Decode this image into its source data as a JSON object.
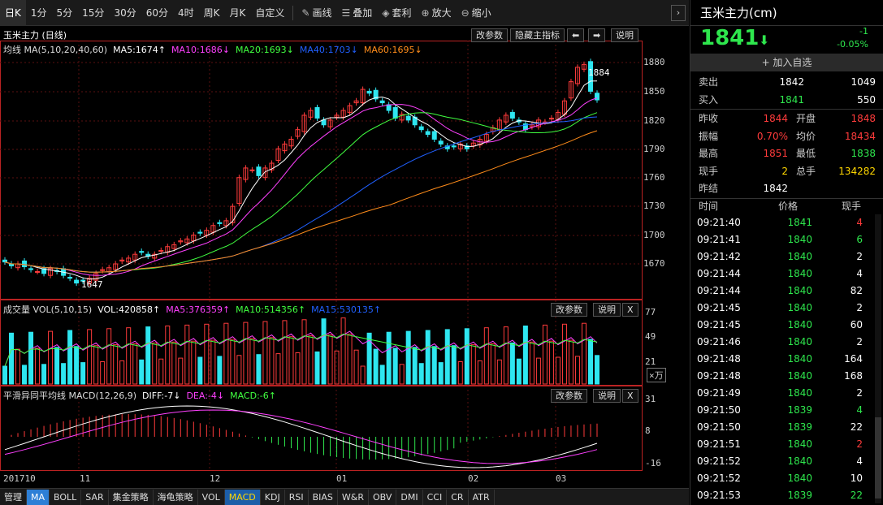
{
  "toolbar": {
    "items": [
      "日K",
      "1分",
      "5分",
      "15分",
      "30分",
      "60分",
      "4时",
      "周K",
      "月K",
      "自定义"
    ],
    "tools": [
      {
        "icon": "pencil-icon",
        "glyph": "✎",
        "label": "画线"
      },
      {
        "icon": "layers-icon",
        "glyph": "☰",
        "label": "叠加"
      },
      {
        "icon": "arbitrage-icon",
        "glyph": "◈",
        "label": "套利"
      },
      {
        "icon": "zoom-in-icon",
        "glyph": "⊕",
        "label": "放大"
      },
      {
        "icon": "zoom-out-icon",
        "glyph": "⊖",
        "label": "缩小"
      }
    ],
    "right_glyph": "›"
  },
  "main_panel": {
    "title": "玉米主力 (日线)",
    "buttons": {
      "params": "改参数",
      "hide": "隐藏主指标",
      "left": "⬅",
      "right": "➡",
      "help": "说明"
    },
    "ma_line": {
      "label": "均线 MA(5,10,20,40,60)",
      "ma5": "MA5:1674↑",
      "ma10": "MA10:1686↓",
      "ma20": "MA20:1693↓",
      "ma40": "MA40:1703↓",
      "ma60": "MA60:1695↓"
    },
    "y_ticks": [
      "1880",
      "1850",
      "1820",
      "1790",
      "1760",
      "1730",
      "1700",
      "1670"
    ],
    "high_label": "1884",
    "low_label": "1647"
  },
  "vol_panel": {
    "title": "成交量 VOL(5,10,15)",
    "vol": "VOL:420858↑",
    "ma5": "MA5:376359↑",
    "ma10": "MA10:514356↑",
    "ma15": "MA15:530135↑",
    "buttons": {
      "params": "改参数",
      "help": "说明",
      "close": "X"
    },
    "y_ticks": [
      "77",
      "49",
      "21"
    ],
    "unit": "×万"
  },
  "macd_panel": {
    "title": "平滑异同平均线 MACD(12,26,9)",
    "diff": "DIFF:-7↓",
    "dea": "DEA:-4↓",
    "macd": "MACD:-6↑",
    "buttons": {
      "params": "改参数",
      "help": "说明",
      "close": "X"
    },
    "y_ticks": [
      "31",
      "8",
      "-16"
    ]
  },
  "x_axis": {
    "labels": [
      "201710",
      "11",
      "12",
      "01",
      "02",
      "03"
    ]
  },
  "bottom_bar": {
    "items": [
      "管理",
      "MA",
      "BOLL",
      "SAR",
      "集金策略",
      "海龟策略",
      "VOL",
      "MACD",
      "KDJ",
      "RSI",
      "BIAS",
      "W&R",
      "OBV",
      "DMI",
      "CCI",
      "CR",
      "ATR"
    ]
  },
  "quote": {
    "name": "玉米主力(cm)",
    "price": "1841",
    "arrow": "⬇",
    "change": "-1",
    "change_pct": "-0.05%",
    "add_watch": "+ 加入自选",
    "sell": {
      "label": "卖出",
      "price": "1842",
      "vol": "1049"
    },
    "buy": {
      "label": "买入",
      "price": "1841",
      "vol": "550"
    },
    "stats": [
      {
        "l1": "昨收",
        "v1": "1844",
        "l2": "开盘",
        "v2": "1848"
      },
      {
        "l1": "振幅",
        "v1": "0.70%",
        "l2": "均价",
        "v2": "18434"
      },
      {
        "l1": "最高",
        "v1": "1851",
        "l2": "最低",
        "v2": "1838"
      },
      {
        "l1": "现手",
        "v1": "2",
        "l2": "总手",
        "v2": "134282"
      },
      {
        "l1": "昨结",
        "v1": "1842",
        "l2": "",
        "v2": ""
      }
    ],
    "tick_header": {
      "time": "时间",
      "price": "价格",
      "vol": "现手"
    },
    "ticks": [
      {
        "time": "09:21:40",
        "price": "1841",
        "vol": "4",
        "vc": "#ff3b3b"
      },
      {
        "time": "09:21:41",
        "price": "1840",
        "vol": "6",
        "vc": "#2ee64d"
      },
      {
        "time": "09:21:42",
        "price": "1840",
        "vol": "2",
        "vc": "#fff"
      },
      {
        "time": "09:21:44",
        "price": "1840",
        "vol": "4",
        "vc": "#fff"
      },
      {
        "time": "09:21:44",
        "price": "1840",
        "vol": "82",
        "vc": "#fff"
      },
      {
        "time": "09:21:45",
        "price": "1840",
        "vol": "2",
        "vc": "#fff"
      },
      {
        "time": "09:21:45",
        "price": "1840",
        "vol": "60",
        "vc": "#fff"
      },
      {
        "time": "09:21:46",
        "price": "1840",
        "vol": "2",
        "vc": "#fff"
      },
      {
        "time": "09:21:48",
        "price": "1840",
        "vol": "164",
        "vc": "#fff"
      },
      {
        "time": "09:21:48",
        "price": "1840",
        "vol": "168",
        "vc": "#fff"
      },
      {
        "time": "09:21:49",
        "price": "1840",
        "vol": "2",
        "vc": "#fff"
      },
      {
        "time": "09:21:50",
        "price": "1839",
        "vol": "4",
        "vc": "#2ee64d"
      },
      {
        "time": "09:21:50",
        "price": "1839",
        "vol": "22",
        "vc": "#fff"
      },
      {
        "time": "09:21:51",
        "price": "1840",
        "vol": "2",
        "vc": "#ff3b3b"
      },
      {
        "time": "09:21:52",
        "price": "1840",
        "vol": "4",
        "vc": "#fff"
      },
      {
        "time": "09:21:52",
        "price": "1840",
        "vol": "10",
        "vc": "#fff"
      },
      {
        "time": "09:21:53",
        "price": "1839",
        "vol": "22",
        "vc": "#2ee64d"
      }
    ]
  },
  "colors": {
    "up": "#ff3b3b",
    "down": "#2ee6f0",
    "green": "#2ee64d",
    "ma5": "#ffffff",
    "ma10": "#ff40ff",
    "ma20": "#40ff40",
    "ma40": "#2060ff",
    "ma60": "#ff8c1a"
  }
}
